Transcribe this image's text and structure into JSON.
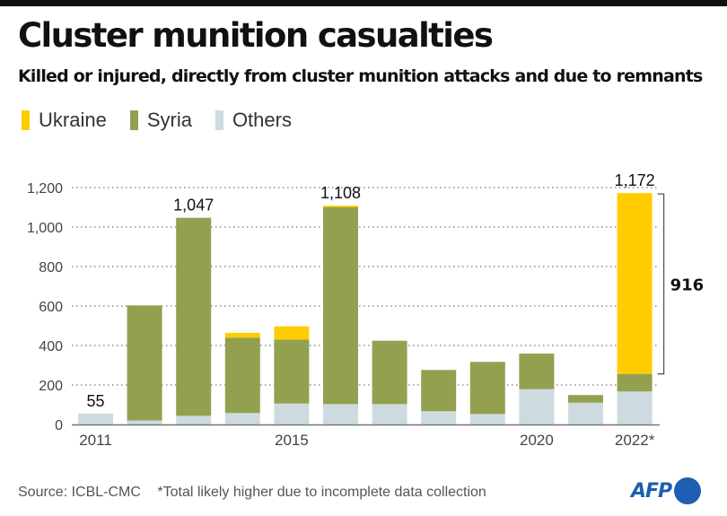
{
  "title": "Cluster munition casualties",
  "subtitle": "Killed or injured, directly from cluster munition attacks and due to remnants",
  "legend": [
    {
      "name": "Ukraine",
      "color": "#ffcc00"
    },
    {
      "name": "Syria",
      "color": "#93a04f"
    },
    {
      "name": "Others",
      "color": "#cddbe1"
    }
  ],
  "footer": {
    "source": "Source: ICBL-CMC",
    "note": "*Total likely higher due to incomplete data collection"
  },
  "logo": "AFP",
  "chart_data": {
    "type": "bar",
    "stacked": true,
    "title": "Cluster munition casualties",
    "subtitle": "Killed or injured, directly from cluster munition attacks and due to remnants",
    "xlabel": "",
    "ylabel": "",
    "categories": [
      "2011",
      "2012",
      "2013",
      "2014",
      "2015",
      "2016",
      "2017",
      "2018",
      "2019",
      "2020",
      "2021",
      "2022*"
    ],
    "x_tick_labels": [
      {
        "category": "2011",
        "label": "2011"
      },
      {
        "category": "2015",
        "label": "2015"
      },
      {
        "category": "2020",
        "label": "2020"
      },
      {
        "category": "2022*",
        "label": "2022*"
      }
    ],
    "series": [
      {
        "name": "Others",
        "color": "#cddbe1",
        "values": [
          55,
          20,
          44,
          58,
          106,
          103,
          103,
          67,
          53,
          179,
          110,
          167
        ]
      },
      {
        "name": "Syria",
        "color": "#93a04f",
        "values": [
          0,
          583,
          1003,
          382,
          324,
          997,
          321,
          209,
          264,
          180,
          39,
          89
        ]
      },
      {
        "name": "Ukraine",
        "color": "#ffcc00",
        "values": [
          0,
          0,
          0,
          24,
          67,
          8,
          0,
          0,
          0,
          0,
          0,
          916
        ]
      }
    ],
    "data_labels": [
      {
        "category": "2011",
        "text": "55",
        "value": 55
      },
      {
        "category": "2013",
        "text": "1,047",
        "value": 1047
      },
      {
        "category": "2016",
        "text": "1,108",
        "value": 1108
      },
      {
        "category": "2022*",
        "text": "1,172",
        "value": 1172
      }
    ],
    "annotation": {
      "category": "2022*",
      "series": "Ukraine",
      "text": "916",
      "from": 256,
      "to": 1172
    },
    "yticks": [
      0,
      200,
      400,
      600,
      800,
      1000,
      1200
    ],
    "ytick_labels": [
      "0",
      "200",
      "400",
      "600",
      "800",
      "1,000",
      "1,200"
    ],
    "ylim": [
      0,
      1200
    ],
    "grid": true,
    "legend_position": "top-left"
  }
}
